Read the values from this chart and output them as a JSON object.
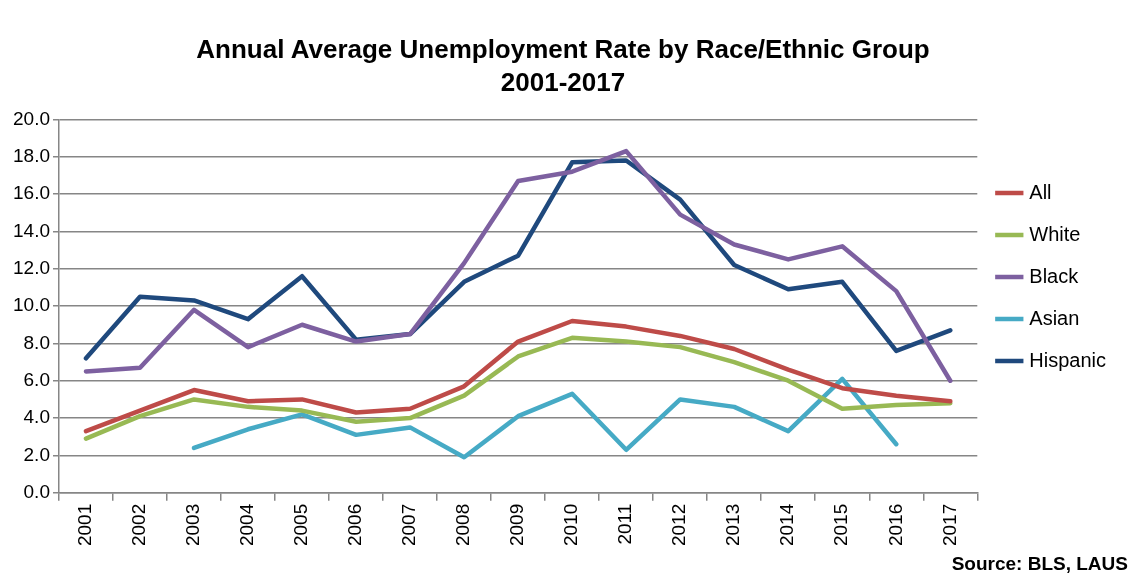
{
  "chart_data": {
    "type": "line",
    "title": "Annual Average Unemployment Rate by Race/Ethnic Group",
    "subtitle": "2001-2017",
    "categories": [
      "2001",
      "2002",
      "2003",
      "2004",
      "2005",
      "2006",
      "2007",
      "2008",
      "2009",
      "2010",
      "2011",
      "2012",
      "2013",
      "2014",
      "2015",
      "2016",
      "2017"
    ],
    "series": [
      {
        "name": "All",
        "color": "#be4b48",
        "values": [
          3.3,
          4.4,
          5.5,
          4.9,
          5.0,
          4.3,
          4.5,
          5.7,
          8.1,
          9.2,
          8.9,
          8.4,
          7.7,
          6.6,
          5.6,
          5.2,
          4.9
        ]
      },
      {
        "name": "White",
        "color": "#98b954",
        "values": [
          2.9,
          4.1,
          5.0,
          4.6,
          4.4,
          3.8,
          4.0,
          5.2,
          7.3,
          8.3,
          8.1,
          7.8,
          7.0,
          6.0,
          4.5,
          4.7,
          4.8
        ]
      },
      {
        "name": "Black",
        "color": "#7d60a0",
        "values": [
          6.5,
          6.7,
          9.8,
          7.8,
          9.0,
          8.1,
          8.5,
          12.3,
          16.7,
          17.2,
          18.3,
          14.9,
          13.3,
          12.5,
          13.2,
          10.8,
          6.0
        ]
      },
      {
        "name": "Asian",
        "color": "#46aac5",
        "values": [
          null,
          null,
          2.4,
          3.4,
          4.2,
          3.1,
          3.5,
          1.9,
          4.1,
          5.3,
          2.3,
          5.0,
          4.6,
          3.3,
          6.1,
          2.6,
          null
        ]
      },
      {
        "name": "Hispanic",
        "color": "#1f497d",
        "values": [
          7.2,
          10.5,
          10.3,
          9.3,
          11.6,
          8.2,
          8.5,
          11.3,
          12.7,
          17.7,
          17.8,
          15.7,
          12.2,
          10.9,
          11.3,
          7.6,
          8.7
        ]
      }
    ],
    "ylim": [
      0,
      20
    ],
    "yticks": [
      {
        "value": 0,
        "label": "0.0"
      },
      {
        "value": 2,
        "label": "2.0"
      },
      {
        "value": 4,
        "label": "4.0"
      },
      {
        "value": 6,
        "label": "6.0"
      },
      {
        "value": 8,
        "label": "8.0"
      },
      {
        "value": 10,
        "label": "10.0"
      },
      {
        "value": 12,
        "label": "12.0"
      },
      {
        "value": 14,
        "label": "14.0"
      },
      {
        "value": 16,
        "label": "16.0"
      },
      {
        "value": 18,
        "label": "18.0"
      },
      {
        "value": 20,
        "label": "20.0"
      }
    ],
    "grid": "y",
    "legend": "right",
    "marker": "none",
    "line_style": "solid",
    "annotations": [
      "Source: BLS, LAUS"
    ]
  }
}
